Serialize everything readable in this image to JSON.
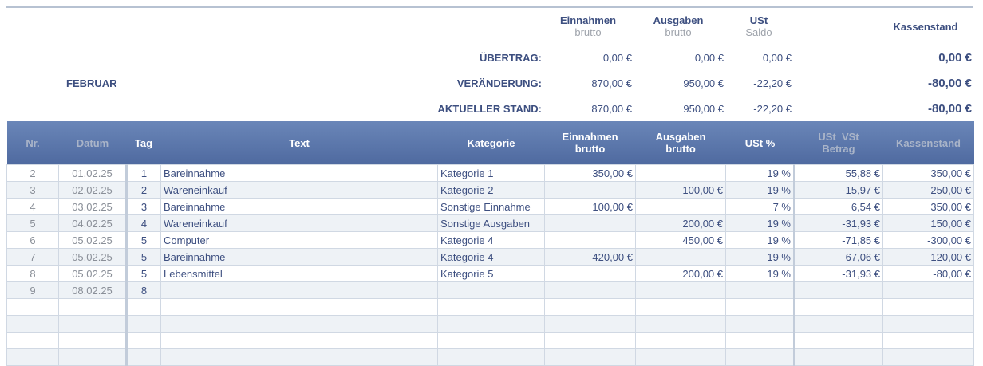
{
  "summary": {
    "month": "FEBRUAR",
    "headers": {
      "einnahmen": "Einnahmen",
      "einnahmen_sub": "brutto",
      "ausgaben": "Ausgaben",
      "ausgaben_sub": "brutto",
      "ust": "USt",
      "ust_sub": "Saldo",
      "kassenstand": "Kassenstand"
    },
    "rows": [
      {
        "label": "ÜBERTRAG:",
        "einnahmen": "0,00 €",
        "ausgaben": "0,00 €",
        "ust": "0,00 €",
        "kassenstand": "0,00 €"
      },
      {
        "label": "VERÄNDERUNG:",
        "einnahmen": "870,00 €",
        "ausgaben": "950,00 €",
        "ust": "-22,20 €",
        "kassenstand": "-80,00 €"
      },
      {
        "label": "AKTUELLER STAND:",
        "einnahmen": "870,00 €",
        "ausgaben": "950,00 €",
        "ust": "-22,20 €",
        "kassenstand": "-80,00 €"
      }
    ]
  },
  "table": {
    "columns": [
      "Nr.",
      "Datum",
      "Tag",
      "Text",
      "Kategorie",
      "Einnahmen brutto",
      "Ausgaben brutto",
      "USt %",
      "USt  VSt Betrag",
      "Kassenstand"
    ],
    "rows": [
      [
        "2",
        "01.02.25",
        "1",
        "Bareinnahme",
        "Kategorie 1",
        "350,00 €",
        "",
        "19 %",
        "55,88 €",
        "350,00 €"
      ],
      [
        "3",
        "02.02.25",
        "2",
        "Wareneinkauf",
        "Kategorie 2",
        "",
        "100,00 €",
        "19 %",
        "-15,97 €",
        "250,00 €"
      ],
      [
        "4",
        "03.02.25",
        "3",
        "Bareinnahme",
        "Sonstige Einnahme",
        "100,00 €",
        "",
        "7 %",
        "6,54 €",
        "350,00 €"
      ],
      [
        "5",
        "04.02.25",
        "4",
        "Wareneinkauf",
        "Sonstige Ausgaben",
        "",
        "200,00 €",
        "19 %",
        "-31,93 €",
        "150,00 €"
      ],
      [
        "6",
        "05.02.25",
        "5",
        "Computer",
        "Kategorie 4",
        "",
        "450,00 €",
        "19 %",
        "-71,85 €",
        "-300,00 €"
      ],
      [
        "7",
        "05.02.25",
        "5",
        "Bareinnahme",
        "Kategorie 4",
        "420,00 €",
        "",
        "19 %",
        "67,06 €",
        "120,00 €"
      ],
      [
        "8",
        "05.02.25",
        "5",
        "Lebensmittel",
        "Kategorie 5",
        "",
        "200,00 €",
        "19 %",
        "-31,93 €",
        "-80,00 €"
      ],
      [
        "9",
        "08.02.25",
        "8",
        "",
        "",
        "",
        "",
        "",
        "",
        ""
      ],
      [
        "",
        "",
        "",
        "",
        "",
        "",
        "",
        "",
        "",
        ""
      ],
      [
        "",
        "",
        "",
        "",
        "",
        "",
        "",
        "",
        "",
        ""
      ],
      [
        "",
        "",
        "",
        "",
        "",
        "",
        "",
        "",
        "",
        ""
      ],
      [
        "",
        "",
        "",
        "",
        "",
        "",
        "",
        "",
        "",
        ""
      ]
    ]
  }
}
